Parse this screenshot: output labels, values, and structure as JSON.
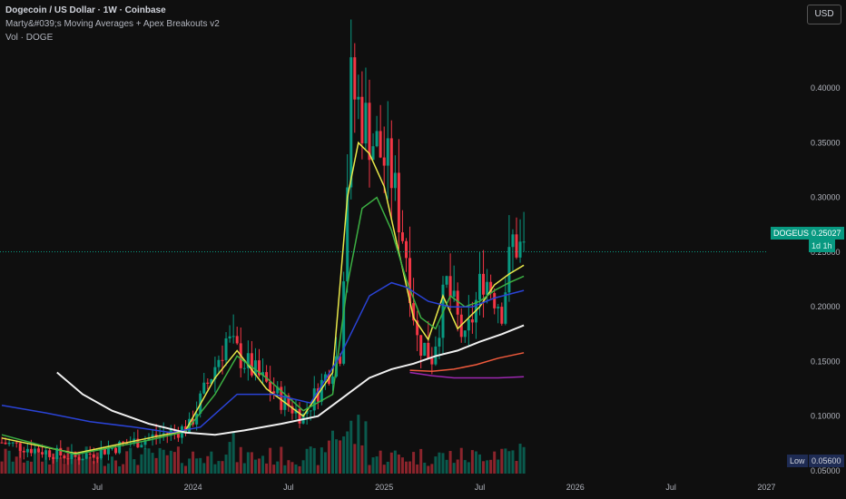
{
  "header": {
    "title": "Dogecoin / US Dollar · 1W · Coinbase",
    "indicator": "Marty&#039;s Moving Averages + Apex Breakouts v2",
    "volume": "Vol · DOGE"
  },
  "currency_button": "USD",
  "price_tag": {
    "symbol": "DOGEUSD",
    "price": "0.25027",
    "countdown": "1d 1h"
  },
  "low_tag": {
    "label": "Low",
    "value": "0.05600"
  },
  "colors": {
    "up": "#089981",
    "down": "#f23645",
    "ma_yellow": "#e8e84a",
    "ma_green": "#3cb043",
    "ma_blue": "#2a43d6",
    "ma_white": "#f0f0f0",
    "ma_orange": "#f05a3c",
    "ma_purple": "#9c27b0"
  },
  "chart_data": {
    "type": "line",
    "title": "Dogecoin / US Dollar · 1W · Coinbase",
    "y_ticks": [
      0.4,
      0.35,
      0.3,
      0.25,
      0.2,
      0.15,
      0.1,
      0.05
    ],
    "y_tick_labels": [
      "0.40000",
      "0.35000",
      "0.30000",
      "0.25000",
      "0.20000",
      "0.15000",
      "0.10000",
      "0.05000"
    ],
    "ylim": [
      0.0475,
      0.4805
    ],
    "x_tick_labels": [
      "Jul",
      "2024",
      "Jul",
      "2025",
      "Jul",
      "2026",
      "Jul",
      "2027"
    ],
    "x_tick_weeks": [
      26,
      52,
      78,
      104,
      130,
      156,
      182,
      208
    ],
    "x_tick_weeks_note": "",
    "ohlc_key_points": [
      {
        "week": 0,
        "close": 0.076
      },
      {
        "week": 20,
        "close": 0.062
      },
      {
        "week": 40,
        "close": 0.08
      },
      {
        "week": 51,
        "close": 0.09
      },
      {
        "week": 61,
        "close": 0.17
      },
      {
        "week": 66,
        "close": 0.15
      },
      {
        "week": 76,
        "close": 0.115
      },
      {
        "week": 82,
        "close": 0.1
      },
      {
        "week": 92,
        "close": 0.16
      },
      {
        "week": 95,
        "close": 0.4
      },
      {
        "week": 100,
        "close": 0.36
      },
      {
        "week": 106,
        "close": 0.32
      },
      {
        "week": 110,
        "close": 0.25
      },
      {
        "week": 113,
        "close": 0.17
      },
      {
        "week": 117,
        "close": 0.155
      },
      {
        "week": 121,
        "close": 0.22
      },
      {
        "week": 126,
        "close": 0.165
      },
      {
        "week": 131,
        "close": 0.23
      },
      {
        "week": 136,
        "close": 0.2
      },
      {
        "week": 139,
        "close": 0.26
      },
      {
        "week": 142,
        "close": 0.25
      }
    ],
    "series": [
      {
        "name": "",
        "color": "#e8e84a",
        "x": [
          0,
          20,
          40,
          50,
          58,
          64,
          72,
          82,
          90,
          94,
          97,
          100,
          104,
          108,
          112,
          116,
          120,
          124,
          130,
          134,
          138,
          142
        ],
        "values": [
          0.08,
          0.066,
          0.08,
          0.087,
          0.135,
          0.16,
          0.125,
          0.1,
          0.14,
          0.3,
          0.35,
          0.34,
          0.31,
          0.25,
          0.19,
          0.17,
          0.21,
          0.18,
          0.2,
          0.22,
          0.23,
          0.238
        ]
      },
      {
        "name": "",
        "color": "#3cb043",
        "x": [
          0,
          20,
          40,
          50,
          58,
          64,
          72,
          82,
          90,
          94,
          98,
          102,
          106,
          110,
          114,
          118,
          122,
          126,
          130,
          134,
          138,
          142
        ],
        "values": [
          0.083,
          0.065,
          0.078,
          0.086,
          0.12,
          0.155,
          0.135,
          0.105,
          0.12,
          0.22,
          0.29,
          0.3,
          0.27,
          0.225,
          0.19,
          0.18,
          0.21,
          0.2,
          0.205,
          0.215,
          0.222,
          0.228
        ]
      },
      {
        "name": "",
        "color": "#2a43d6",
        "x": [
          0,
          12,
          24,
          36,
          46,
          54,
          64,
          74,
          84,
          92,
          100,
          106,
          110,
          116,
          122,
          128,
          134,
          142
        ],
        "values": [
          0.11,
          0.103,
          0.095,
          0.09,
          0.085,
          0.09,
          0.12,
          0.12,
          0.112,
          0.155,
          0.21,
          0.222,
          0.218,
          0.205,
          0.2,
          0.2,
          0.208,
          0.215
        ]
      },
      {
        "name": "",
        "color": "#f0f0f0",
        "x": [
          15,
          22,
          30,
          40,
          50,
          58,
          66,
          76,
          86,
          94,
          100,
          106,
          112,
          118,
          124,
          130,
          136,
          142
        ],
        "values": [
          0.14,
          0.12,
          0.105,
          0.093,
          0.085,
          0.083,
          0.087,
          0.093,
          0.1,
          0.12,
          0.135,
          0.143,
          0.148,
          0.155,
          0.16,
          0.168,
          0.175,
          0.183
        ]
      },
      {
        "name": "",
        "color": "#f05a3c",
        "x": [
          111,
          117,
          123,
          129,
          135,
          142
        ],
        "values": [
          0.142,
          0.141,
          0.143,
          0.147,
          0.153,
          0.158
        ]
      },
      {
        "name": "",
        "color": "#9c27b0",
        "x": [
          111,
          117,
          123,
          129,
          135,
          142
        ],
        "values": [
          0.14,
          0.137,
          0.135,
          0.135,
          0.135,
          0.136
        ]
      }
    ],
    "last_price": 0.25027,
    "grid": false,
    "legend": "none"
  }
}
